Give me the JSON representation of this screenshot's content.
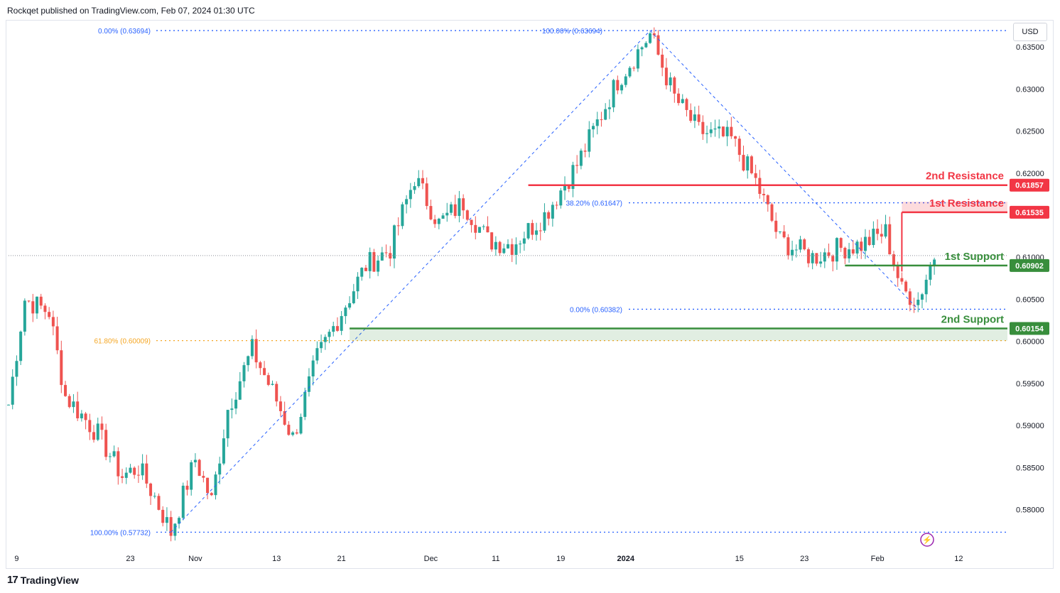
{
  "header": {
    "published": "Rockqet published on TradingView.com, Feb 07, 2024 01:30 UTC"
  },
  "footer": {
    "brand": "TradingView",
    "logo_icon": "tradingview-logo-icon"
  },
  "currency": "USD",
  "colors": {
    "up": "#26a69a",
    "down": "#ef5350",
    "resistance": "#f23645",
    "support": "#388e3c",
    "fib_blue": "#2962ff",
    "fib_orange": "#f5a623",
    "grid": "#eef0f4",
    "axis_text": "#131722",
    "fib_text": "#2962ff"
  },
  "chart_data": {
    "type": "candlestick",
    "ylim": [
      0.576,
      0.6372
    ],
    "y_ticks": [
      "0.63500",
      "0.63000",
      "0.62500",
      "0.62000",
      "0.61000",
      "0.60500",
      "0.60000",
      "0.59500",
      "0.59000",
      "0.58500",
      "0.58000"
    ],
    "x_ticks": [
      {
        "label": "9",
        "i": 1
      },
      {
        "label": "23",
        "i": 15
      },
      {
        "label": "Nov",
        "i": 23
      },
      {
        "label": "13",
        "i": 33
      },
      {
        "label": "21",
        "i": 41
      },
      {
        "label": "Dec",
        "i": 52
      },
      {
        "label": "11",
        "i": 60
      },
      {
        "label": "19",
        "i": 68
      },
      {
        "label": "2024",
        "i": 76,
        "bold": true
      },
      {
        "label": "15",
        "i": 90
      },
      {
        "label": "23",
        "i": 98
      },
      {
        "label": "Feb",
        "i": 107
      },
      {
        "label": "12",
        "i": 117
      }
    ],
    "x_range": [
      0,
      123
    ],
    "price_path": [
      [
        0,
        0.5925
      ],
      [
        2,
        0.605
      ],
      [
        5,
        0.6035
      ],
      [
        7,
        0.5935
      ],
      [
        11,
        0.589
      ],
      [
        14,
        0.584
      ],
      [
        16,
        0.585
      ],
      [
        18,
        0.5815
      ],
      [
        20,
        0.5773
      ],
      [
        23,
        0.586
      ],
      [
        25,
        0.581
      ],
      [
        27,
        0.592
      ],
      [
        30,
        0.599
      ],
      [
        33,
        0.593
      ],
      [
        35,
        0.5885
      ],
      [
        38,
        0.598
      ],
      [
        41,
        0.6035
      ],
      [
        44,
        0.609
      ],
      [
        47,
        0.611
      ],
      [
        50,
        0.6195
      ],
      [
        53,
        0.614
      ],
      [
        56,
        0.6165
      ],
      [
        59,
        0.612
      ],
      [
        62,
        0.6115
      ],
      [
        66,
        0.615
      ],
      [
        70,
        0.621
      ],
      [
        75,
        0.631
      ],
      [
        79,
        0.6365
      ],
      [
        82,
        0.629
      ],
      [
        85,
        0.625
      ],
      [
        89,
        0.624
      ],
      [
        92,
        0.619
      ],
      [
        95,
        0.612
      ],
      [
        99,
        0.61
      ],
      [
        102,
        0.611
      ],
      [
        105,
        0.6115
      ],
      [
        108,
        0.613
      ],
      [
        110,
        0.606
      ],
      [
        112,
        0.605
      ],
      [
        114,
        0.6102
      ]
    ],
    "fib_retracement_1": {
      "levels": [
        {
          "label": "0.00% (0.63694)",
          "value": 0.63694
        },
        {
          "label": "61.80% (0.60009)",
          "value": 0.60009
        },
        {
          "label": "100.00% (0.57732)",
          "value": 0.57732
        }
      ]
    },
    "fib_retracement_2": {
      "levels": [
        {
          "label": "100.00% (0.63694)",
          "value": 0.63694
        },
        {
          "label": "38.20% (0.61647)",
          "value": 0.61647
        },
        {
          "label": "0.00% (0.60382)",
          "value": 0.60382
        }
      ]
    },
    "resistance": [
      {
        "label": "2nd Resistance",
        "value": 0.61857,
        "price_label": "0.61857"
      },
      {
        "label": "1st Resistance",
        "value": 0.61535,
        "price_label": "0.61535"
      }
    ],
    "support": [
      {
        "label": "1st Support",
        "value": 0.60902,
        "price_label": "0.60902"
      },
      {
        "label": "2nd Support",
        "value": 0.60154,
        "price_label": "0.60154"
      }
    ],
    "current_price": 0.6102
  }
}
